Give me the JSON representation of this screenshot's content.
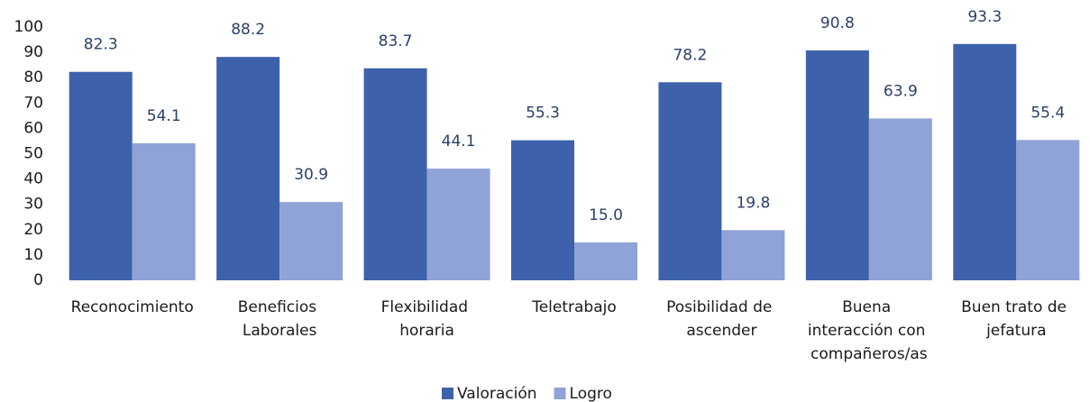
{
  "chart_data": {
    "type": "bar",
    "categories": [
      "Reconocimiento",
      "Beneficios Laborales",
      "Flexibilidad horaria",
      "Teletrabajo",
      "Posibilidad de ascender",
      "Buena interacción con compañeros/as",
      "Buen trato de jefatura"
    ],
    "series": [
      {
        "name": "Valoración",
        "color": "#3d62ab",
        "values": [
          82.3,
          88.2,
          83.7,
          55.3,
          78.2,
          90.8,
          93.3
        ],
        "value_labels": [
          "82.3",
          "88.2",
          "83.7",
          "55.3",
          "78.2",
          "90.8",
          "93.3"
        ]
      },
      {
        "name": "Logro",
        "color": "#8fa3d6",
        "values": [
          54.1,
          30.9,
          44.1,
          15,
          19.8,
          63.9,
          55.4
        ],
        "value_labels": [
          "54.1",
          "30.9",
          "44.1",
          "15.0",
          "19.8",
          "63.9",
          "55.4"
        ]
      }
    ],
    "ylim": [
      0,
      100
    ],
    "yticks": [
      0,
      10,
      20,
      30,
      40,
      50,
      60,
      70,
      80,
      90,
      100
    ],
    "grid": false,
    "legend": "bottom"
  }
}
